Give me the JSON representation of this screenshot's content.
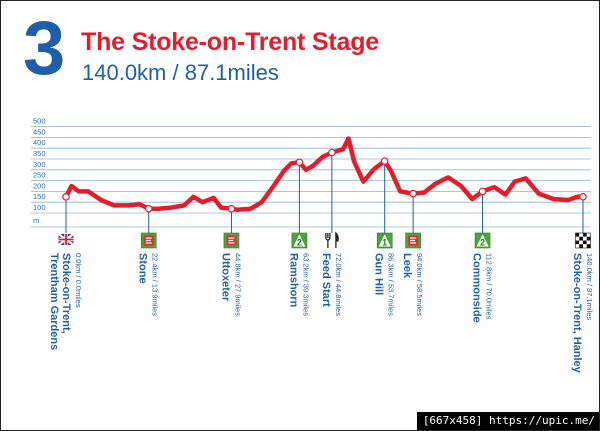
{
  "header": {
    "stage_number": "3",
    "title": "The Stoke-on-Trent Stage",
    "distance": "140.0km / 87.1miles"
  },
  "colors": {
    "profile_line": "#e31d2b",
    "axis_text": "#2a6db5",
    "grid": "#8fb4dc",
    "label_blue": "#1f5fa8",
    "sprint_green": "#4aa53e",
    "sprint_red": "#d9312b"
  },
  "chart_data": {
    "type": "line",
    "xlim": [
      0,
      140
    ],
    "ylim": [
      0,
      500
    ],
    "y_ticks": [
      100,
      150,
      200,
      250,
      300,
      350,
      400,
      450,
      500
    ],
    "y_unit": "m",
    "grid": true,
    "profile": {
      "x": [
        0,
        1.5,
        3.5,
        6,
        9.5,
        13,
        17,
        20,
        22.4,
        25,
        28.5,
        32,
        34.5,
        37,
        40,
        42,
        44.8,
        46.5,
        50,
        53,
        56,
        59,
        61,
        63.2,
        65,
        67,
        69.5,
        72,
        75,
        76.5,
        78,
        80.5,
        83.5,
        86.3,
        88,
        90.5,
        94,
        97,
        100,
        103.5,
        107,
        110,
        112.8,
        116,
        119,
        121.5,
        124.5,
        128,
        132,
        136,
        138.5,
        140
      ],
      "y": [
        175,
        225,
        200,
        200,
        160,
        135,
        135,
        140,
        120,
        120,
        125,
        135,
        175,
        150,
        170,
        125,
        120,
        115,
        120,
        150,
        220,
        295,
        330,
        335,
        300,
        320,
        360,
        380,
        395,
        445,
        340,
        245,
        305,
        340,
        295,
        200,
        190,
        195,
        235,
        265,
        225,
        165,
        200,
        220,
        185,
        245,
        260,
        190,
        165,
        160,
        175,
        175
      ]
    },
    "markers": [
      {
        "x": 0,
        "y": 175,
        "icon": "start-flag-icon",
        "name": "Stoke-on-Trent,\nTrentham Gardens",
        "dist": "0.0km / 0.0miles"
      },
      {
        "x": 22.4,
        "y": 120,
        "icon": "sprint-icon",
        "name": "Stone",
        "dist": "22.4km / 13.9miles"
      },
      {
        "x": 44.8,
        "y": 120,
        "icon": "sprint-icon",
        "name": "Uttoxeter",
        "dist": "44.8km / 27.9miles"
      },
      {
        "x": 63.2,
        "y": 335,
        "icon": "climb-cat-2-icon",
        "name": "Ramshorn",
        "dist": "63.2km / 39.3miles"
      },
      {
        "x": 72,
        "y": 380,
        "icon": "feed-station-icon",
        "name": "Feed Start",
        "dist": "72.0km / 44.8miles"
      },
      {
        "x": 86.3,
        "y": 340,
        "icon": "climb-cat-1-icon",
        "name": "Gun Hill",
        "dist": "86.3km / 53.7miles"
      },
      {
        "x": 94,
        "y": 190,
        "icon": "sprint-icon",
        "name": "Leek",
        "dist": "94.0km / 58.5miles"
      },
      {
        "x": 112.8,
        "y": 200,
        "icon": "climb-cat-2-icon",
        "name": "Commonside",
        "dist": "112.8km / 70.0miles"
      },
      {
        "x": 140,
        "y": 175,
        "icon": "finish-flag-icon",
        "name": "Stoke-on-Trent, Hanley",
        "dist": "140.0km / 87.1miles"
      }
    ]
  },
  "watermark": "[667x458] https://upic.me/"
}
